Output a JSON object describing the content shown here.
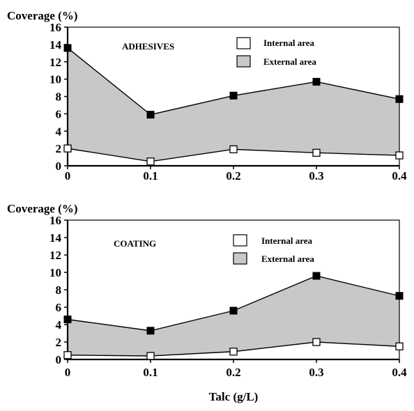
{
  "chart_data": [
    {
      "type": "area",
      "title": "ADHESIVES",
      "ylabel": "Coverage (%)",
      "xlabel": "",
      "x": [
        0,
        0.1,
        0.2,
        0.3,
        0.4
      ],
      "x_tick_labels": [
        "0",
        "0.1",
        "0.2",
        "0.3",
        "0.4"
      ],
      "y_ticks": [
        "0",
        "2",
        "4",
        "6",
        "8",
        "10",
        "12",
        "14",
        "16"
      ],
      "ylim": [
        0,
        16
      ],
      "series": [
        {
          "name": "Internal area",
          "values": [
            2.0,
            0.5,
            1.9,
            1.5,
            1.2
          ]
        },
        {
          "name": "External area",
          "values": [
            13.6,
            5.9,
            8.1,
            9.7,
            7.7
          ]
        }
      ],
      "legend": "top-right"
    },
    {
      "type": "area",
      "title": "COATING",
      "ylabel": "Coverage (%)",
      "xlabel": "Talc (g/L)",
      "x": [
        0,
        0.1,
        0.2,
        0.3,
        0.4
      ],
      "x_tick_labels": [
        "0",
        "0.1",
        "0.2",
        "0.3",
        "0.4"
      ],
      "y_ticks": [
        "0",
        "2",
        "4",
        "6",
        "8",
        "10",
        "12",
        "14",
        "16"
      ],
      "ylim": [
        0,
        16
      ],
      "series": [
        {
          "name": "Internal area",
          "values": [
            0.5,
            0.4,
            0.9,
            2.0,
            1.5
          ]
        },
        {
          "name": "External area",
          "values": [
            4.6,
            3.3,
            5.6,
            9.6,
            7.3
          ]
        }
      ],
      "legend": "top-right"
    }
  ],
  "colors": {
    "external_fill": "#c8c8c8",
    "internal_fill": "#ffffff",
    "line": "#000000"
  }
}
